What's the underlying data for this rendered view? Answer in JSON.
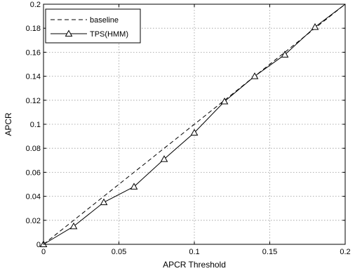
{
  "chart_data": {
    "type": "line",
    "title": "",
    "xlabel": "APCR Threshold",
    "ylabel": "APCR",
    "xlim": [
      0,
      0.2
    ],
    "ylim": [
      0,
      0.2
    ],
    "grid": true,
    "legend_position": "top-left",
    "x_ticks": [
      0,
      0.05,
      0.1,
      0.15,
      0.2
    ],
    "x_tick_labels": [
      "0",
      "0.05",
      "0.1",
      "0.15",
      "0.2"
    ],
    "y_ticks": [
      0,
      0.02,
      0.04,
      0.06,
      0.08,
      0.1,
      0.12,
      0.14,
      0.16,
      0.18,
      0.2
    ],
    "y_tick_labels": [
      "0",
      "0.02",
      "0.04",
      "0.06",
      "0.08",
      "0.1",
      "0.12",
      "0.14",
      "0.16",
      "0.18",
      "0.2"
    ],
    "series": [
      {
        "name": "baseline",
        "style": "dashed",
        "marker": "none",
        "color": "#000000",
        "x": [
          0,
          0.2
        ],
        "y": [
          0,
          0.2
        ]
      },
      {
        "name": "TPS(HMM)",
        "style": "solid",
        "marker": "triangle",
        "color": "#000000",
        "x": [
          0,
          0.02,
          0.04,
          0.06,
          0.08,
          0.1,
          0.12,
          0.14,
          0.16,
          0.18,
          0.2
        ],
        "y": [
          0,
          0.015,
          0.035,
          0.048,
          0.071,
          0.093,
          0.119,
          0.14,
          0.158,
          0.181,
          0.2
        ],
        "marker_points": [
          0,
          1,
          2,
          3,
          4,
          5,
          6,
          7,
          8,
          9
        ]
      }
    ]
  }
}
